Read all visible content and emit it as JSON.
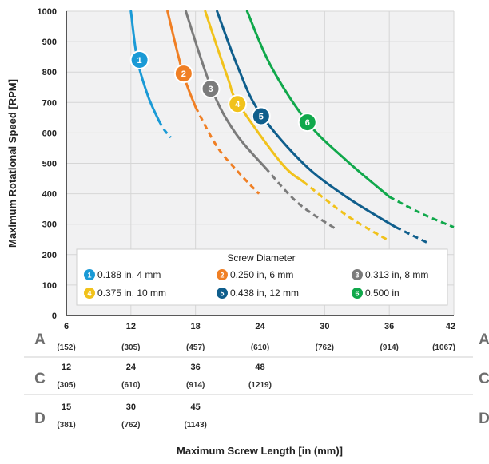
{
  "chart_data": {
    "type": "line",
    "ylabel": "Maximum Rotational Speed [RPM]",
    "xlabel": "Maximum Screw Length [in (mm)]",
    "ylim": [
      0,
      1000
    ],
    "xlim": [
      6,
      42
    ],
    "yticks": [
      "0",
      "100",
      "200",
      "300",
      "400",
      "500",
      "600",
      "700",
      "800",
      "900",
      "1000"
    ],
    "grid": true,
    "x_rows": [
      {
        "letter": "A",
        "ticks": [
          {
            "x": 6,
            "in": "6",
            "mm": "(152)"
          },
          {
            "x": 12,
            "in": "12",
            "mm": "(305)"
          },
          {
            "x": 18,
            "in": "18",
            "mm": "(457)"
          },
          {
            "x": 24,
            "in": "24",
            "mm": "(610)"
          },
          {
            "x": 30,
            "in": "30",
            "mm": "(762)"
          },
          {
            "x": 36,
            "in": "36",
            "mm": "(914)"
          },
          {
            "x": 42,
            "in": "42",
            "mm": "(1067)"
          }
        ]
      },
      {
        "letter": "C",
        "ticks": [
          {
            "x": 6,
            "in": "12",
            "mm": "(305)"
          },
          {
            "x": 12,
            "in": "24",
            "mm": "(610)"
          },
          {
            "x": 18,
            "in": "36",
            "mm": "(914)"
          },
          {
            "x": 24,
            "in": "48",
            "mm": "(1219)"
          }
        ]
      },
      {
        "letter": "D",
        "ticks": [
          {
            "x": 6,
            "in": "15",
            "mm": "(381)"
          },
          {
            "x": 12,
            "in": "30",
            "mm": "(762)"
          },
          {
            "x": 18,
            "in": "45",
            "mm": "(1143)"
          }
        ]
      }
    ],
    "legend": {
      "title": "Screw Diameter",
      "placement": "bottom-inside"
    },
    "series": [
      {
        "label": "1",
        "name": "0.188 in, 4 mm",
        "color": "#1a9ad6",
        "solid": [
          [
            12.0,
            1000
          ],
          [
            12.6,
            840
          ],
          [
            13.6,
            720
          ],
          [
            14.6,
            640
          ]
        ],
        "dashed": [
          [
            14.6,
            640
          ],
          [
            15.1,
            610
          ],
          [
            15.7,
            585
          ]
        ],
        "badge": {
          "x": 12.8,
          "y": 840
        }
      },
      {
        "label": "2",
        "name": "0.250 in, 6 mm",
        "color": "#f07f24",
        "solid": [
          [
            15.4,
            1000
          ],
          [
            16.8,
            800
          ],
          [
            18.0,
            685
          ]
        ],
        "dashed": [
          [
            18.0,
            685
          ],
          [
            20.0,
            555
          ],
          [
            22.0,
            470
          ],
          [
            23.9,
            400
          ]
        ],
        "badge": {
          "x": 16.9,
          "y": 795
        }
      },
      {
        "label": "3",
        "name": "0.313 in, 8 mm",
        "color": "#7b7b7b",
        "solid": [
          [
            17.1,
            1000
          ],
          [
            19.5,
            745
          ],
          [
            21.7,
            600
          ],
          [
            24.5,
            485
          ]
        ],
        "dashed": [
          [
            24.5,
            485
          ],
          [
            27.5,
            370
          ],
          [
            31.0,
            285
          ]
        ],
        "badge": {
          "x": 19.4,
          "y": 745
        }
      },
      {
        "label": "4",
        "name": "0.375 in, 10 mm",
        "color": "#f1c21b",
        "solid": [
          [
            18.9,
            1000
          ],
          [
            21.0,
            780
          ],
          [
            22.0,
            695
          ],
          [
            26.0,
            500
          ],
          [
            28.0,
            440
          ]
        ],
        "dashed": [
          [
            28.0,
            440
          ],
          [
            32.0,
            330
          ],
          [
            36.0,
            245
          ]
        ],
        "badge": {
          "x": 21.9,
          "y": 695
        }
      },
      {
        "label": "5",
        "name": "0.438 in, 12 mm",
        "color": "#0f5e8c",
        "solid": [
          [
            20.0,
            1000
          ],
          [
            22.0,
            810
          ],
          [
            24.0,
            665
          ],
          [
            28.0,
            500
          ],
          [
            32.0,
            390
          ],
          [
            36.6,
            290
          ]
        ],
        "dashed": [
          [
            36.6,
            290
          ],
          [
            39.5,
            240
          ]
        ],
        "badge": {
          "x": 24.1,
          "y": 655
        }
      },
      {
        "label": "6",
        "name": "0.500 in",
        "color": "#10a84b",
        "solid": [
          [
            22.8,
            1000
          ],
          [
            25.0,
            820
          ],
          [
            28.4,
            635
          ],
          [
            32.0,
            510
          ],
          [
            36.0,
            390
          ]
        ],
        "dashed": [
          [
            36.0,
            390
          ],
          [
            39.0,
            335
          ],
          [
            42.0,
            290
          ]
        ],
        "badge": {
          "x": 28.4,
          "y": 635
        }
      }
    ]
  }
}
